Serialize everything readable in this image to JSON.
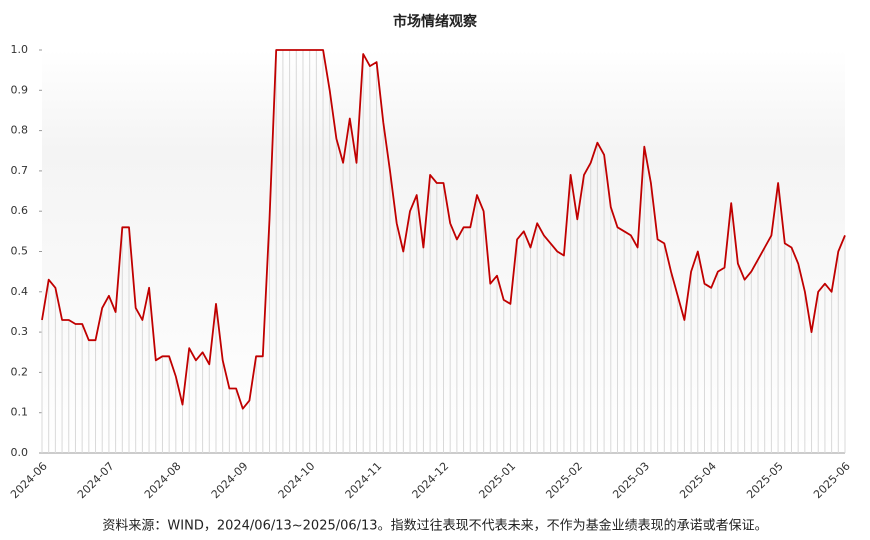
{
  "chart_data": {
    "type": "line",
    "title": "市场情绪观察",
    "note": "资料来源：WIND，2024/06/13~2025/06/13。指数过往表现不代表未来，不作为基金业绩表现的承诺或者保证。",
    "categories": [
      "2024-06",
      null,
      null,
      null,
      null,
      null,
      null,
      null,
      null,
      null,
      "2024-07",
      null,
      null,
      null,
      null,
      null,
      null,
      null,
      null,
      null,
      "2024-08",
      null,
      null,
      null,
      null,
      null,
      null,
      null,
      null,
      null,
      "2024-09",
      null,
      null,
      null,
      null,
      null,
      null,
      null,
      null,
      null,
      "2024-10",
      null,
      null,
      null,
      null,
      null,
      null,
      null,
      null,
      null,
      "2024-11",
      null,
      null,
      null,
      null,
      null,
      null,
      null,
      null,
      null,
      "2024-12",
      null,
      null,
      null,
      null,
      null,
      null,
      null,
      null,
      null,
      "2025-01",
      null,
      null,
      null,
      null,
      null,
      null,
      null,
      null,
      null,
      "2025-02",
      null,
      null,
      null,
      null,
      null,
      null,
      null,
      null,
      null,
      "2025-03",
      null,
      null,
      null,
      null,
      null,
      null,
      null,
      null,
      null,
      "2025-04",
      null,
      null,
      null,
      null,
      null,
      null,
      null,
      null,
      null,
      "2025-05",
      null,
      null,
      null,
      null,
      null,
      null,
      null,
      null,
      null,
      "2025-06"
    ],
    "series": [
      {
        "name": "市场情绪",
        "color": "#c00000",
        "values": [
          0.33,
          0.43,
          0.41,
          0.33,
          0.33,
          0.32,
          0.32,
          0.28,
          0.28,
          0.36,
          0.39,
          0.35,
          0.56,
          0.56,
          0.36,
          0.33,
          0.41,
          0.23,
          0.24,
          0.24,
          0.19,
          0.12,
          0.26,
          0.23,
          0.25,
          0.22,
          0.37,
          0.23,
          0.16,
          0.16,
          0.11,
          0.13,
          0.24,
          0.24,
          0.58,
          1.0,
          1.0,
          1.0,
          1.0,
          1.0,
          1.0,
          1.0,
          1.0,
          0.9,
          0.78,
          0.72,
          0.83,
          0.72,
          0.99,
          0.96,
          0.97,
          0.82,
          0.7,
          0.57,
          0.5,
          0.6,
          0.64,
          0.51,
          0.69,
          0.67,
          0.67,
          0.57,
          0.53,
          0.56,
          0.56,
          0.64,
          0.6,
          0.42,
          0.44,
          0.38,
          0.37,
          0.53,
          0.55,
          0.51,
          0.57,
          0.54,
          0.52,
          0.5,
          0.49,
          0.69,
          0.58,
          0.69,
          0.72,
          0.77,
          0.74,
          0.61,
          0.56,
          0.55,
          0.54,
          0.51,
          0.76,
          0.67,
          0.53,
          0.52,
          0.45,
          0.39,
          0.33,
          0.45,
          0.5,
          0.42,
          0.41,
          0.45,
          0.46,
          0.62,
          0.47,
          0.43,
          0.45,
          0.48,
          0.51,
          0.54,
          0.67,
          0.52,
          0.51,
          0.47,
          0.4,
          0.3,
          0.4,
          0.42,
          0.4,
          0.5,
          0.54
        ]
      }
    ],
    "ylim": [
      0,
      1.0
    ],
    "yticks": [
      {
        "value": 0,
        "label": "0.0"
      },
      0.1,
      0.2,
      0.3,
      0.4,
      0.5,
      0.6,
      0.7,
      0.8,
      0.9,
      {
        "value": 1.0,
        "label": "1.0"
      }
    ],
    "fill_color": "#d9d9d9"
  }
}
